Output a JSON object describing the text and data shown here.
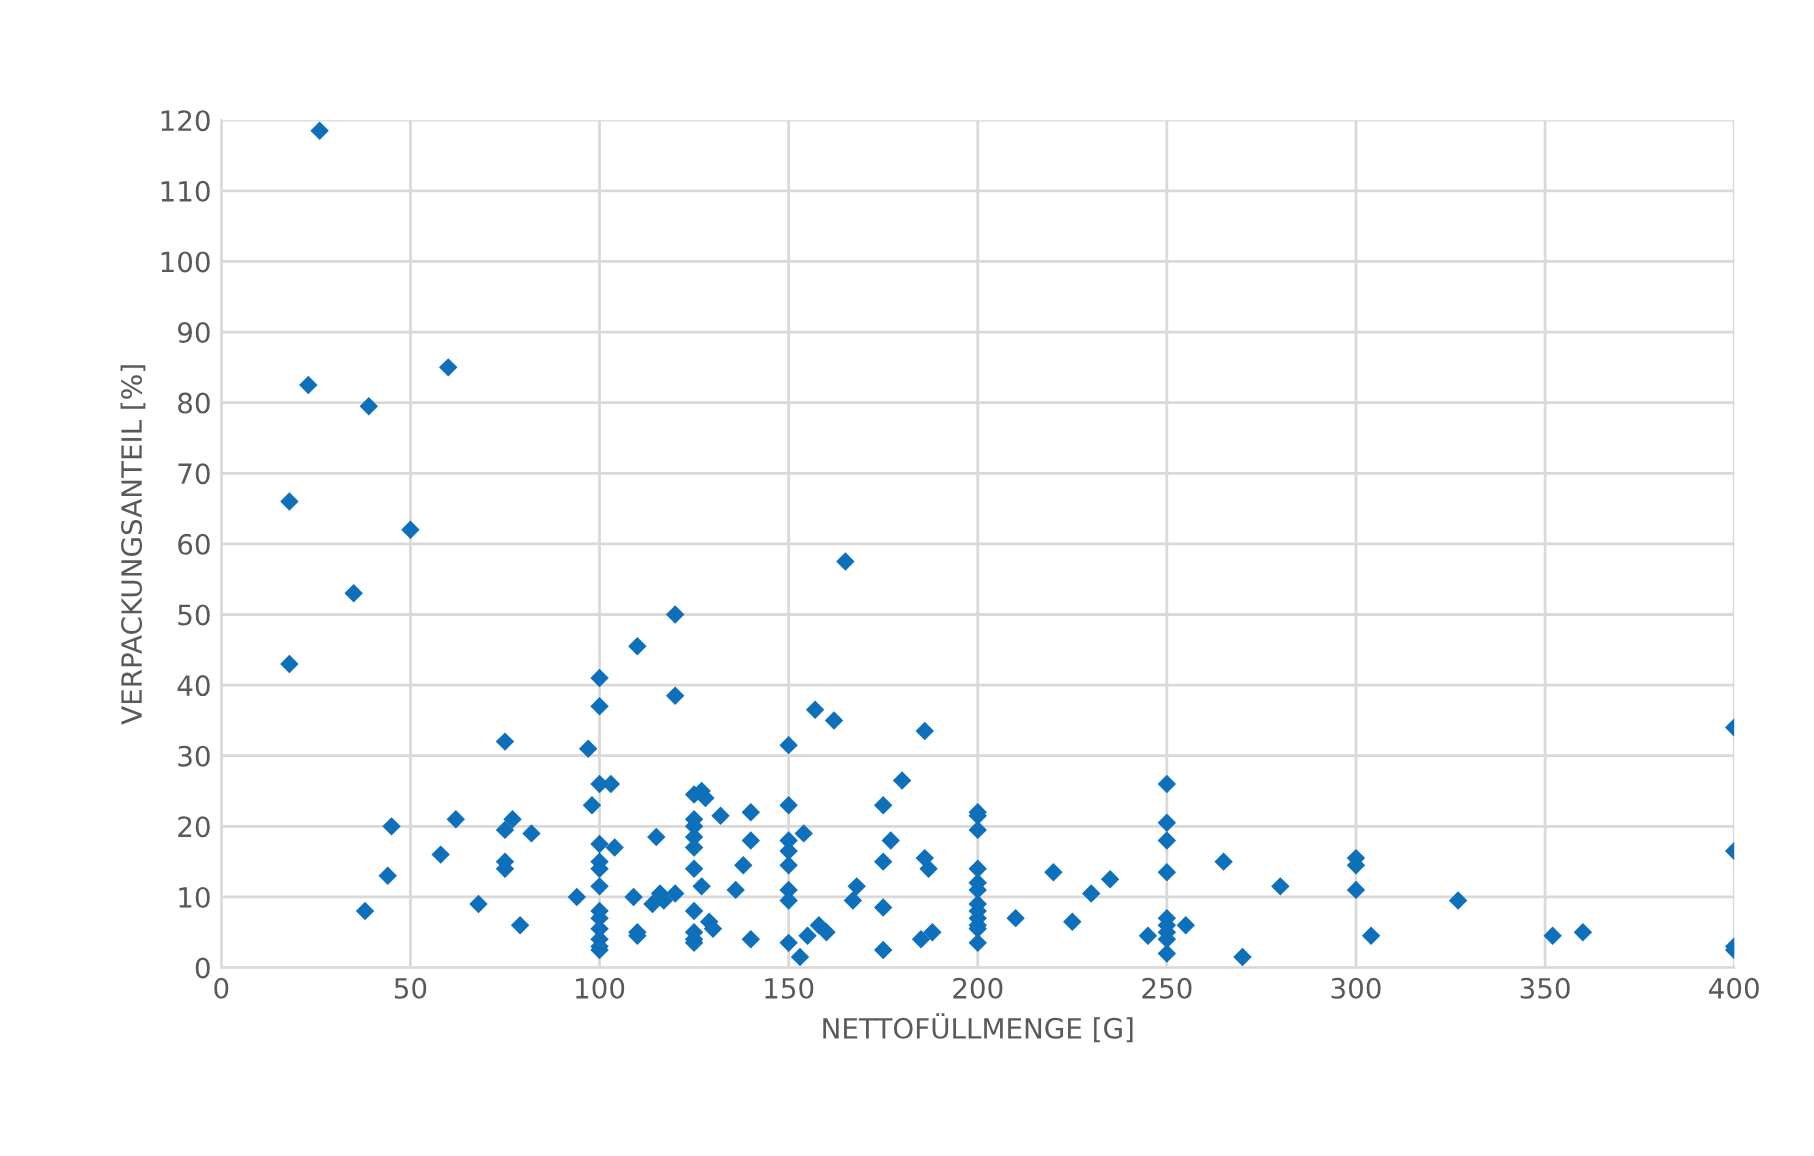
{
  "chart_data": {
    "type": "scatter",
    "xlabel": "NETTOFÜLLMENGE [G]",
    "ylabel": "VERPACKUNGSANTEIL [%]",
    "xlim": [
      0,
      400
    ],
    "xticks": [
      0,
      50,
      100,
      150,
      200,
      250,
      300,
      350,
      400
    ],
    "ylim": [
      0,
      120
    ],
    "yticks": [
      0,
      10,
      20,
      30,
      40,
      50,
      60,
      70,
      80,
      90,
      100,
      110,
      120
    ],
    "grid": true,
    "marker": "diamond",
    "series": [
      {
        "color": "#0e6fba",
        "x": [
          26,
          23,
          39,
          60,
          18,
          50,
          35,
          18,
          38,
          44,
          45,
          58,
          62,
          68,
          75,
          75,
          75,
          75,
          77,
          79,
          82,
          94,
          97,
          98,
          100,
          100,
          100,
          100,
          100,
          100,
          100,
          100,
          100,
          100,
          100,
          100,
          100,
          103,
          104,
          110,
          109,
          110,
          110,
          114,
          115,
          116,
          117,
          120,
          120,
          120,
          125,
          125,
          125,
          125,
          125,
          125,
          125,
          125,
          125,
          125,
          127,
          128,
          127,
          129,
          130,
          132,
          136,
          138,
          140,
          140,
          140,
          150,
          150,
          150,
          150,
          150,
          150,
          150,
          150,
          153,
          154,
          155,
          157,
          158,
          160,
          162,
          165,
          167,
          168,
          175,
          175,
          175,
          175,
          177,
          180,
          185,
          186,
          186,
          187,
          188,
          200,
          200,
          200,
          200,
          200,
          200,
          200,
          200,
          200,
          200,
          200,
          200,
          210,
          220,
          225,
          230,
          235,
          245,
          250,
          250,
          250,
          250,
          250,
          250,
          250,
          250,
          250,
          255,
          265,
          270,
          280,
          300,
          300,
          300,
          304,
          327,
          352,
          360,
          400,
          400,
          400,
          400
        ],
        "values": [
          118.5,
          82.5,
          79.5,
          85,
          66,
          62,
          53,
          43,
          8,
          13,
          20,
          16,
          21,
          9,
          32,
          19.5,
          15,
          14,
          21,
          6,
          19,
          10,
          31,
          23,
          41,
          37,
          26,
          17.5,
          15,
          14,
          11.5,
          8,
          7,
          5.5,
          4,
          3,
          2.5,
          26,
          17,
          45.5,
          10,
          5,
          4.5,
          9,
          18.5,
          10.5,
          9.5,
          50,
          38.5,
          10.5,
          24.5,
          21,
          20,
          18.5,
          17,
          14,
          8,
          5,
          4,
          3.5,
          25,
          24,
          11.5,
          6.5,
          5.5,
          21.5,
          11,
          14.5,
          22,
          18,
          4,
          31.5,
          23,
          18,
          16.5,
          14.5,
          11,
          9.5,
          3.5,
          1.5,
          19,
          4.5,
          36.5,
          6,
          5,
          35,
          57.5,
          9.5,
          11.5,
          23,
          15,
          8.5,
          2.5,
          18,
          26.5,
          4,
          33.5,
          15.5,
          14,
          5,
          22,
          21.5,
          19.5,
          14,
          12,
          11,
          9,
          8,
          7,
          6,
          5.5,
          3.5,
          7,
          13.5,
          6.5,
          10.5,
          12.5,
          4.5,
          26,
          20.5,
          18,
          13.5,
          7,
          6,
          5,
          4,
          2,
          6,
          15,
          1.5,
          11.5,
          15.5,
          14.5,
          11,
          4.5,
          9.5,
          4.5,
          5,
          34,
          16.5,
          3,
          2.5
        ]
      }
    ]
  }
}
